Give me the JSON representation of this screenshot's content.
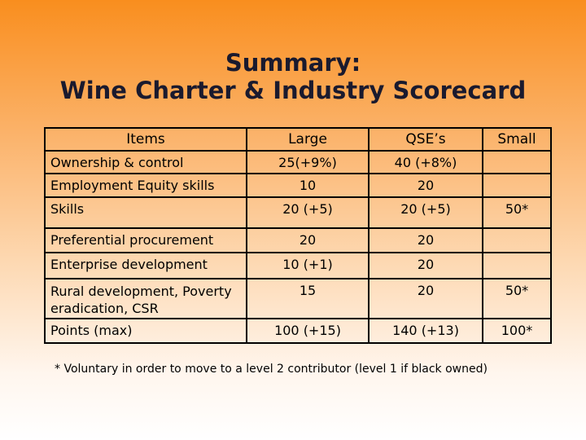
{
  "slide": {
    "title_line1": "Summary:",
    "title_line2": "Wine Charter & Industry Scorecard"
  },
  "table": {
    "headers": [
      "Items",
      "Large",
      "QSE’s",
      "Small"
    ],
    "rows": [
      [
        "Ownership & control",
        "25(+9%)",
        "40 (+8%)",
        ""
      ],
      [
        "Employment Equity skills",
        "10",
        "20",
        ""
      ],
      [
        "Skills",
        "20 (+5)",
        "20 (+5)",
        "50*"
      ],
      [
        "Preferential procurement",
        "20",
        "20",
        ""
      ],
      [
        "Enterprise development",
        "10 (+1)",
        "20",
        ""
      ],
      [
        "Rural development, Poverty eradication, CSR",
        "15",
        "20",
        "50*"
      ],
      [
        "Points  (max)",
        "100 (+15)",
        "140 (+13)",
        "100*"
      ]
    ]
  },
  "footnote": "* Voluntary in order to move to a level 2 contributor (level 1 if black owned)"
}
